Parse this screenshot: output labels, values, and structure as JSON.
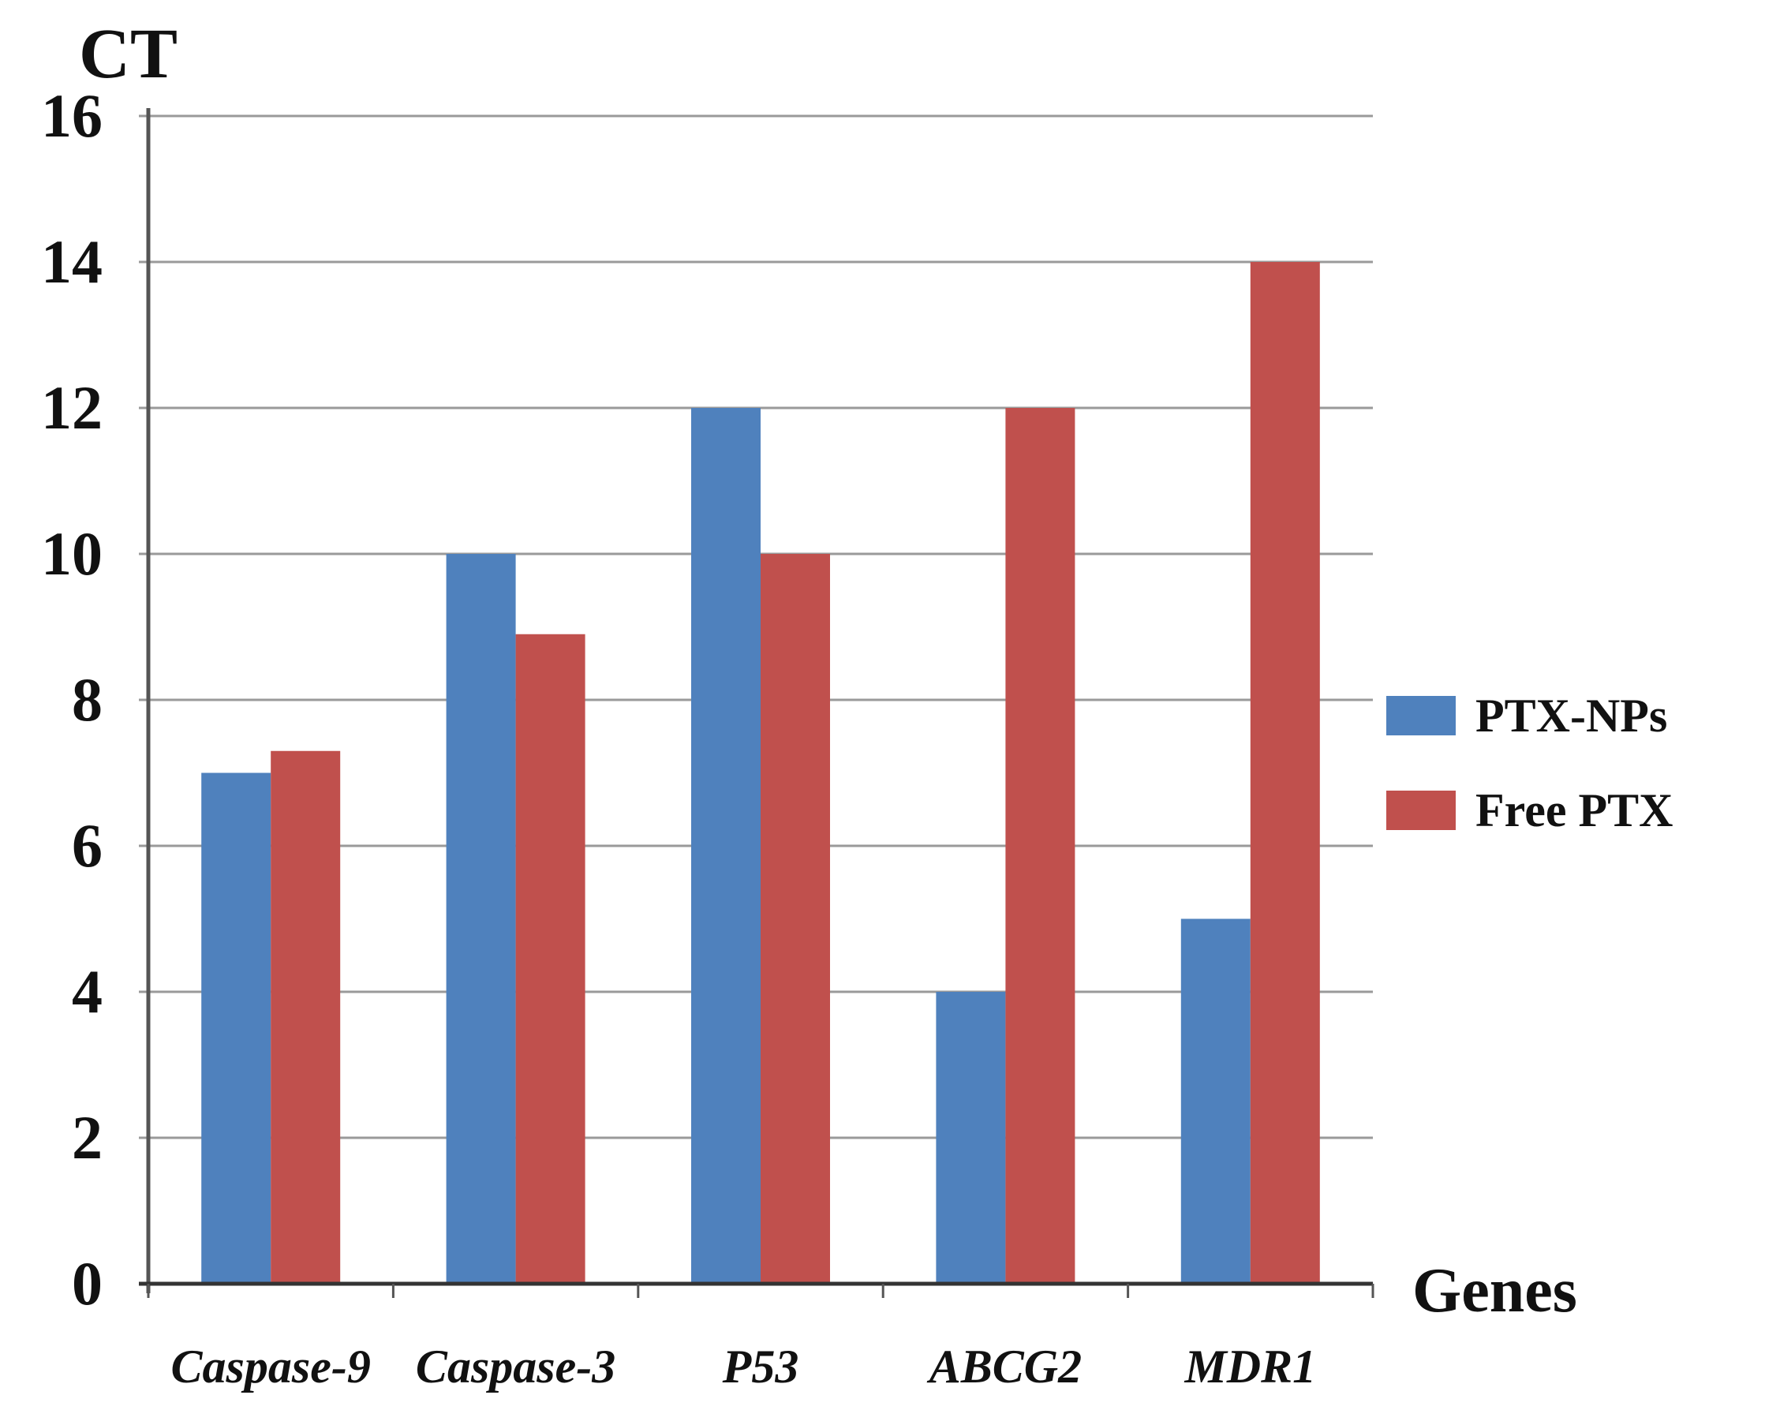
{
  "chart_data": {
    "type": "bar",
    "title": "",
    "xlabel": "Genes",
    "ylabel": "CT",
    "ylim": [
      0,
      16
    ],
    "yticks": [
      "0",
      "2",
      "4",
      "6",
      "8",
      "10",
      "12",
      "14",
      "16"
    ],
    "grid": true,
    "legend_position": "right",
    "categories": [
      "Caspase-9",
      "Caspase-3",
      "P53",
      "ABCG2",
      "MDR1"
    ],
    "series": [
      {
        "name": "PTX-NPs",
        "color": "#4f81bd",
        "values": [
          7,
          10,
          12,
          4,
          5
        ]
      },
      {
        "name": "Free PTX",
        "color": "#c0504d",
        "values": [
          7.3,
          8.9,
          10,
          12,
          14
        ]
      }
    ]
  }
}
